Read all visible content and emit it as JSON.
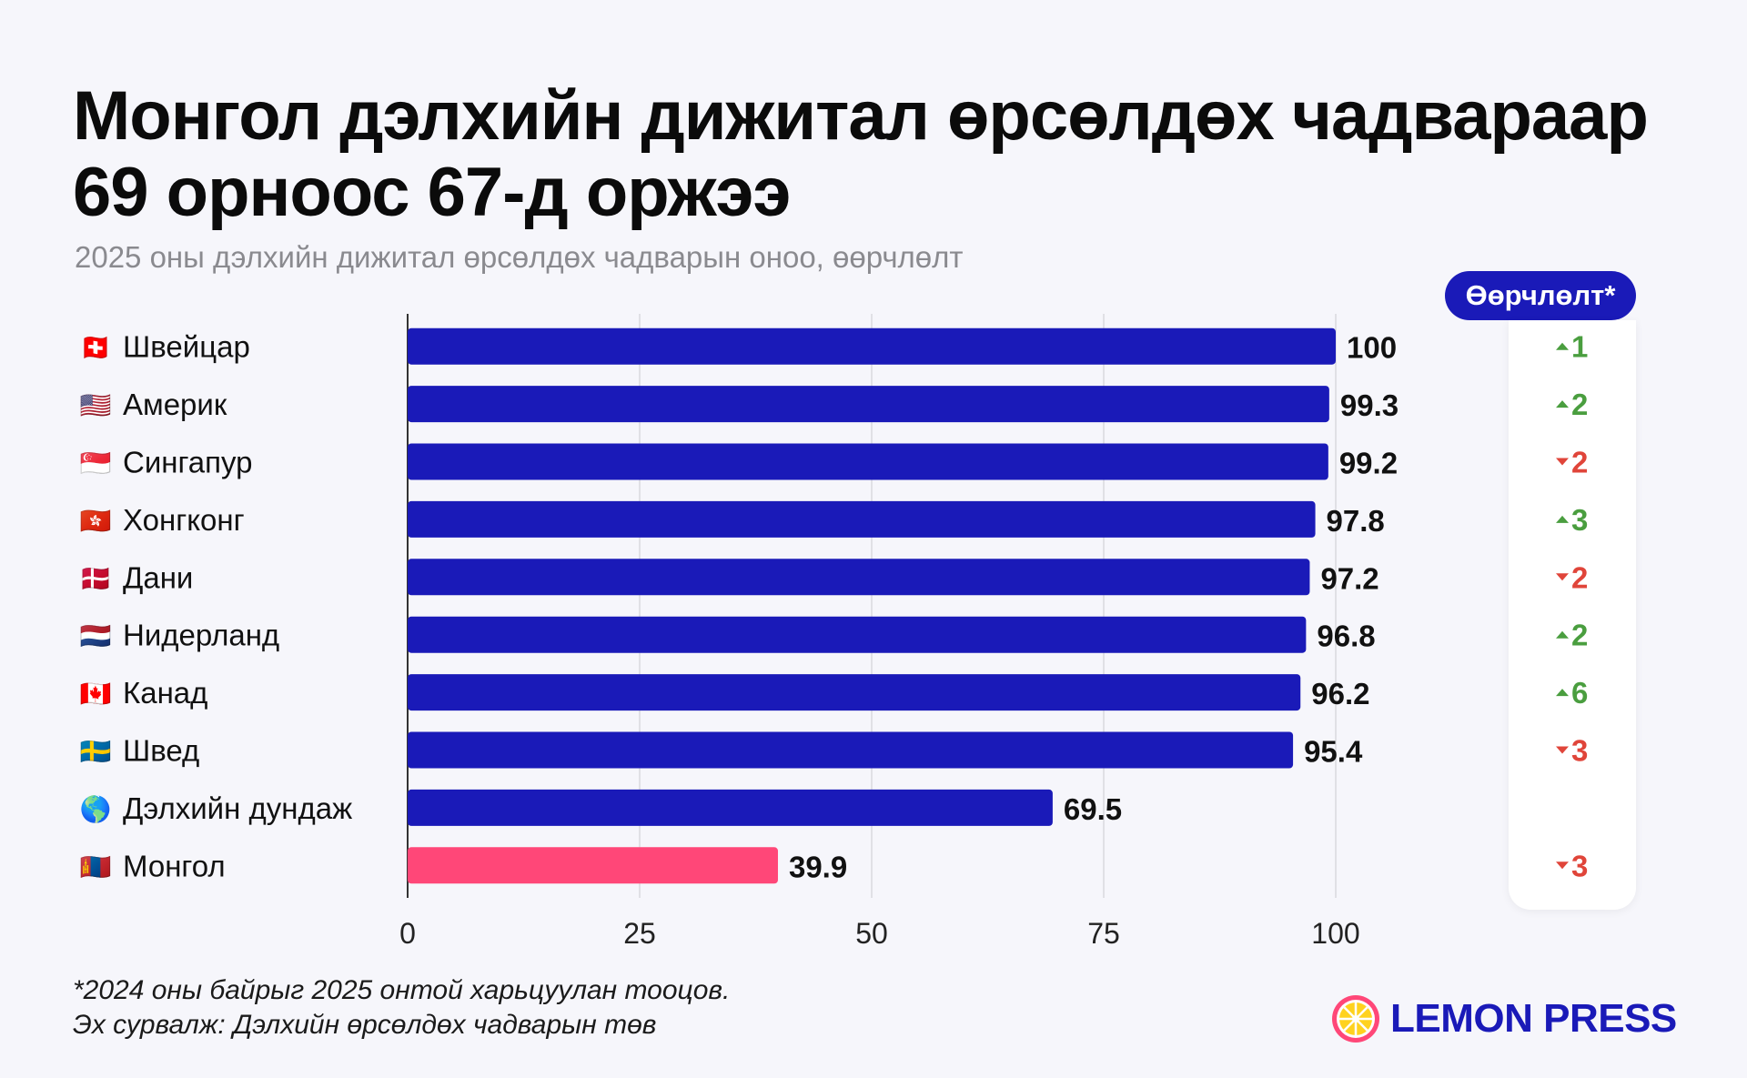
{
  "title_line1": "Монгол дэлхийн дижитал өрсөлдөх чадвараар",
  "title_line2": "69 орноос 67-д оржээ",
  "subtitle": "2025 оны дэлхийн дижитал өрсөлдөх чадварын оноо, өөрчлөлт",
  "change_header": "Өөрчлөлт*",
  "footnote_line1": "*2024 оны байрыг 2025 онтой харьцуулан тооцов.",
  "footnote_line2": "Эх сурвалж: Дэлхийн өрсөлдөх чадварын төв",
  "logo_text": "LEMON PRESS",
  "colors": {
    "bar": "#1a1ab8",
    "highlight": "#ff4778",
    "up": "#4a9e3f",
    "down": "#e0453a"
  },
  "chart_data": {
    "type": "bar",
    "orientation": "horizontal",
    "title": "Монгол дэлхийн дижитал өрсөлдөх чадвараар 69 орноос 67-д оржээ",
    "subtitle": "2025 оны дэлхийн дижитал өрсөлдөх чадварын оноо, өөрчлөлт",
    "xlim": [
      0,
      100
    ],
    "xticks": [
      0,
      25,
      50,
      75,
      100
    ],
    "grid": true,
    "categories": [
      "Швейцар",
      "Америк",
      "Сингапур",
      "Хонгконг",
      "Дани",
      "Нидерланд",
      "Канад",
      "Швед",
      "Дэлхийн дундаж",
      "Монгол"
    ],
    "flags": [
      "🇨🇭",
      "🇺🇸",
      "🇸🇬",
      "🇭🇰",
      "🇩🇰",
      "🇳🇱",
      "🇨🇦",
      "🇸🇪",
      "🌎",
      "🇲🇳"
    ],
    "values": [
      100,
      99.3,
      99.2,
      97.8,
      97.2,
      96.8,
      96.2,
      95.4,
      69.5,
      39.9
    ],
    "value_labels": [
      "100",
      "99.3",
      "99.2",
      "97.8",
      "97.2",
      "96.8",
      "96.2",
      "95.4",
      "69.5",
      "39.9"
    ],
    "highlight": [
      false,
      false,
      false,
      false,
      false,
      false,
      false,
      false,
      false,
      true
    ],
    "rank_change": [
      {
        "dir": "up",
        "value": "1"
      },
      {
        "dir": "up",
        "value": "2"
      },
      {
        "dir": "down",
        "value": "2"
      },
      {
        "dir": "up",
        "value": "3"
      },
      {
        "dir": "down",
        "value": "2"
      },
      {
        "dir": "up",
        "value": "2"
      },
      {
        "dir": "up",
        "value": "6"
      },
      {
        "dir": "down",
        "value": "3"
      },
      null,
      {
        "dir": "down",
        "value": "3"
      }
    ]
  }
}
